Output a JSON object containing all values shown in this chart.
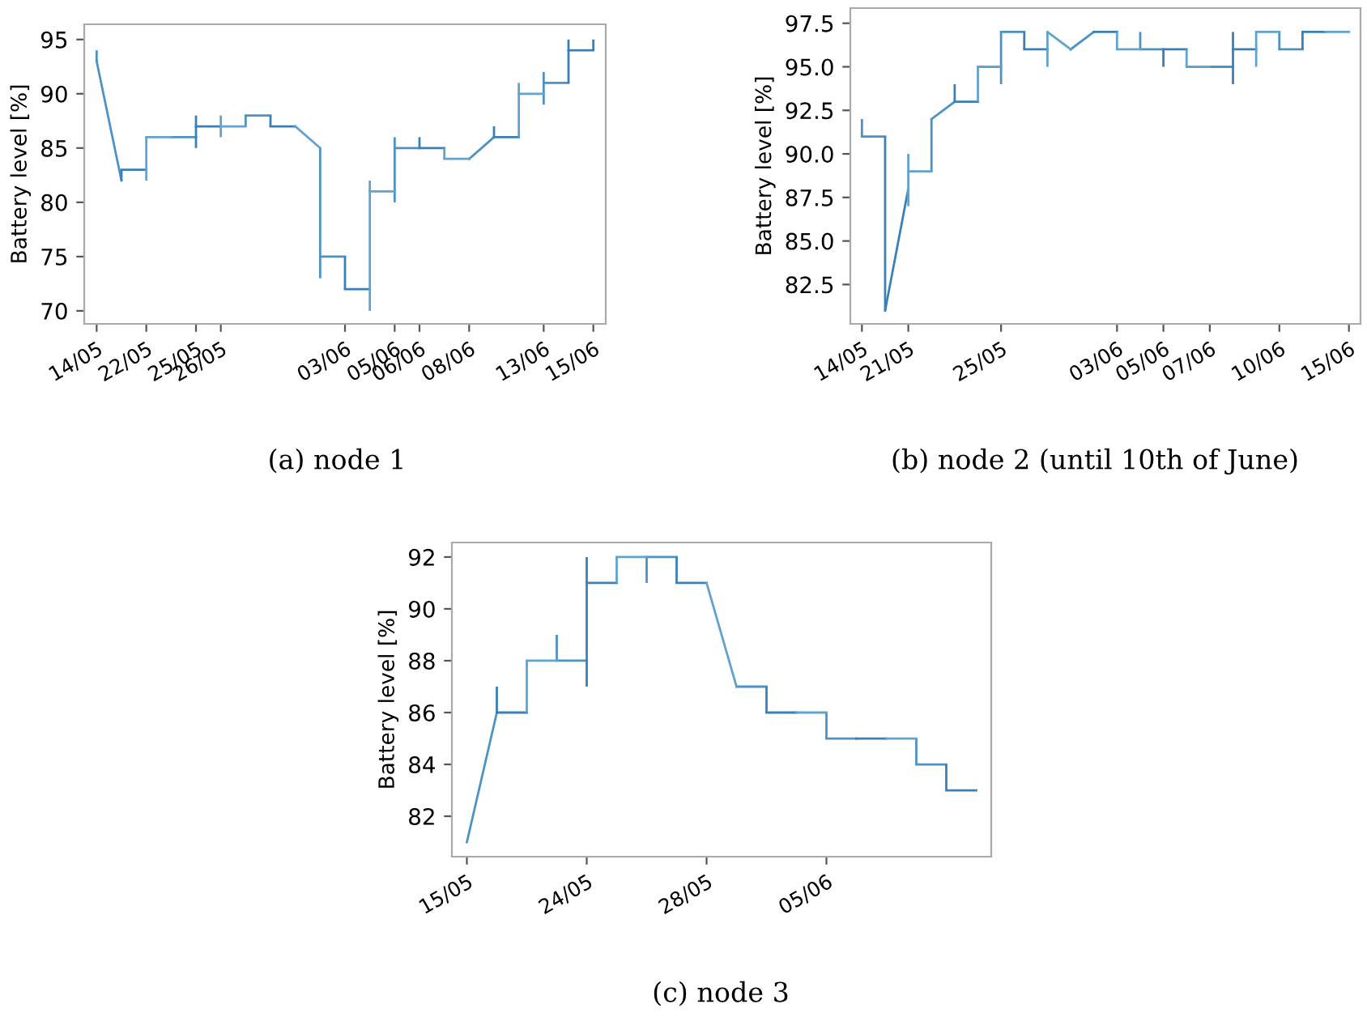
{
  "chart_data": [
    {
      "type": "line",
      "ylabel": "Battery level [%]",
      "annotations": [
        "(a) node 1"
      ],
      "grid": false,
      "legend": false,
      "ylim": [
        68.8,
        96.4
      ],
      "yticks": [
        70,
        75,
        80,
        85,
        90,
        95
      ],
      "categories": [
        "14/05",
        null,
        "22/05",
        null,
        "25/05",
        "26/05",
        null,
        null,
        null,
        null,
        "03/06",
        null,
        "05/06",
        "06/06",
        null,
        "08/06",
        null,
        null,
        "13/06",
        null,
        "15/06"
      ],
      "series": [
        {
          "color": "#4c92c3",
          "values": [
            93,
            82,
            null,
            86,
            86,
            null,
            88,
            88,
            null,
            75,
            75,
            null,
            85,
            85,
            null,
            84,
            86,
            null,
            91,
            91,
            null
          ],
          "errors": [
            [
              93,
              94
            ],
            null,
            null,
            null,
            null,
            null,
            [
              87,
              88
            ],
            null,
            null,
            [
              73,
              85
            ],
            null,
            null,
            [
              80,
              86
            ],
            null,
            null,
            null,
            null,
            null,
            [
              89,
              92
            ],
            null,
            null
          ]
        },
        {
          "color": "#3a80b6",
          "values": [
            null,
            83,
            83,
            null,
            87,
            87,
            null,
            87,
            87,
            null,
            72,
            72,
            null,
            85,
            85,
            null,
            86,
            86,
            null,
            94,
            94
          ],
          "errors": [
            null,
            [
              82,
              83
            ],
            null,
            null,
            [
              85,
              88
            ],
            null,
            null,
            [
              87,
              88
            ],
            null,
            null,
            [
              72,
              75
            ],
            null,
            null,
            [
              85,
              86
            ],
            null,
            null,
            [
              86,
              87
            ],
            null,
            null,
            [
              91,
              95
            ],
            [
              94,
              95
            ]
          ]
        },
        {
          "color": "#62a2cf",
          "values": [
            null,
            null,
            86,
            86,
            null,
            87,
            87,
            null,
            87,
            85,
            null,
            81,
            81,
            null,
            84,
            84,
            null,
            90,
            90,
            null,
            null
          ],
          "errors": [
            null,
            null,
            [
              82,
              86
            ],
            null,
            null,
            [
              86,
              88
            ],
            null,
            null,
            null,
            null,
            null,
            [
              70,
              82
            ],
            null,
            null,
            [
              84,
              85
            ],
            null,
            null,
            [
              86,
              91
            ],
            null,
            null,
            null
          ]
        }
      ]
    },
    {
      "type": "line",
      "ylabel": "Battery level [%]",
      "annotations": [
        "(b) node 2 (until 10th of June)"
      ],
      "grid": false,
      "legend": false,
      "ylim": [
        80.24,
        98.37
      ],
      "yticks": [
        {
          "value": 82.5,
          "label": "82.5"
        },
        {
          "value": 85,
          "label": "85.0"
        },
        {
          "value": 87.5,
          "label": "87.5"
        },
        {
          "value": 90,
          "label": "90.0"
        },
        {
          "value": 92.5,
          "label": "92.5"
        },
        {
          "value": 95,
          "label": "95.0"
        },
        {
          "value": 97.5,
          "label": "97.5"
        }
      ],
      "categories": [
        "14/05",
        null,
        "21/05",
        null,
        null,
        null,
        "25/05",
        null,
        null,
        null,
        null,
        "03/06",
        null,
        "05/06",
        null,
        "07/06",
        null,
        null,
        "10/06",
        null,
        null,
        "15/06"
      ],
      "series": [
        {
          "color": "#4c92c3",
          "values": [
            91,
            91,
            null,
            92,
            93,
            null,
            97,
            97,
            null,
            96,
            97,
            null,
            96,
            96,
            null,
            95,
            95,
            null,
            96,
            96,
            null,
            null
          ],
          "errors": [
            [
              91,
              92
            ],
            null,
            null,
            [
              89,
              92
            ],
            null,
            null,
            [
              94,
              97
            ],
            null,
            null,
            null,
            null,
            null,
            [
              96,
              97
            ],
            null,
            null,
            null,
            null,
            null,
            [
              96,
              97
            ],
            null,
            null,
            null
          ]
        },
        {
          "color": "#3a80b6",
          "values": [
            null,
            81,
            88,
            null,
            93,
            93,
            null,
            96,
            96,
            null,
            97,
            97,
            null,
            96,
            96,
            null,
            96,
            96,
            null,
            97,
            97,
            null
          ],
          "errors": [
            null,
            [
              81,
              91
            ],
            null,
            null,
            [
              93,
              94
            ],
            null,
            null,
            [
              96,
              97
            ],
            null,
            null,
            null,
            null,
            null,
            [
              95,
              96
            ],
            null,
            null,
            [
              94,
              97
            ],
            null,
            null,
            [
              96,
              97
            ],
            null,
            null
          ]
        },
        {
          "color": "#62a2cf",
          "values": [
            null,
            null,
            89,
            89,
            null,
            95,
            95,
            null,
            97,
            96,
            null,
            96,
            96,
            null,
            95,
            95,
            null,
            97,
            97,
            null,
            97,
            97
          ],
          "errors": [
            null,
            null,
            [
              87,
              90
            ],
            null,
            null,
            [
              93,
              95
            ],
            null,
            null,
            [
              95,
              97
            ],
            null,
            null,
            [
              96,
              97
            ],
            null,
            null,
            [
              95,
              96
            ],
            null,
            null,
            [
              95,
              97
            ],
            null,
            null,
            null,
            null
          ]
        }
      ]
    },
    {
      "type": "line",
      "ylabel": "Battery level [%]",
      "annotations": [
        "(c) node 3"
      ],
      "grid": false,
      "legend": false,
      "ylim": [
        80.44,
        92.56
      ],
      "yticks": [
        82,
        84,
        86,
        88,
        90,
        92
      ],
      "categories": [
        "15/05",
        null,
        null,
        null,
        "24/05",
        null,
        null,
        null,
        "28/05",
        null,
        null,
        null,
        "05/06",
        null,
        null,
        null,
        null,
        null
      ],
      "series": [
        {
          "color": "#4c92c3",
          "values": [
            81,
            86,
            null,
            88,
            88,
            null,
            92,
            92,
            null,
            87,
            87,
            null,
            85,
            85,
            null,
            84,
            84,
            null
          ],
          "errors": [
            null,
            null,
            null,
            [
              88,
              89
            ],
            null,
            null,
            [
              91,
              92
            ],
            null,
            null,
            null,
            null,
            null,
            [
              85,
              86
            ],
            null,
            null,
            [
              84,
              85
            ],
            null,
            null
          ]
        },
        {
          "color": "#3a80b6",
          "values": [
            null,
            86,
            86,
            null,
            91,
            91,
            null,
            91,
            91,
            null,
            86,
            86,
            null,
            85,
            85,
            null,
            83,
            83
          ],
          "errors": [
            null,
            [
              86,
              87
            ],
            null,
            null,
            [
              87,
              92
            ],
            null,
            null,
            [
              91,
              92
            ],
            null,
            null,
            [
              86,
              87
            ],
            null,
            null,
            null,
            null,
            null,
            [
              83,
              84
            ],
            null
          ]
        },
        {
          "color": "#62a2cf",
          "values": [
            null,
            null,
            88,
            88,
            null,
            92,
            92,
            null,
            91,
            87,
            null,
            86,
            86,
            null,
            85,
            85,
            null,
            null
          ],
          "errors": [
            null,
            null,
            [
              86,
              88
            ],
            null,
            null,
            [
              91,
              92
            ],
            null,
            null,
            null,
            null,
            null,
            null,
            null,
            null,
            null,
            null,
            null,
            null
          ]
        }
      ]
    }
  ]
}
